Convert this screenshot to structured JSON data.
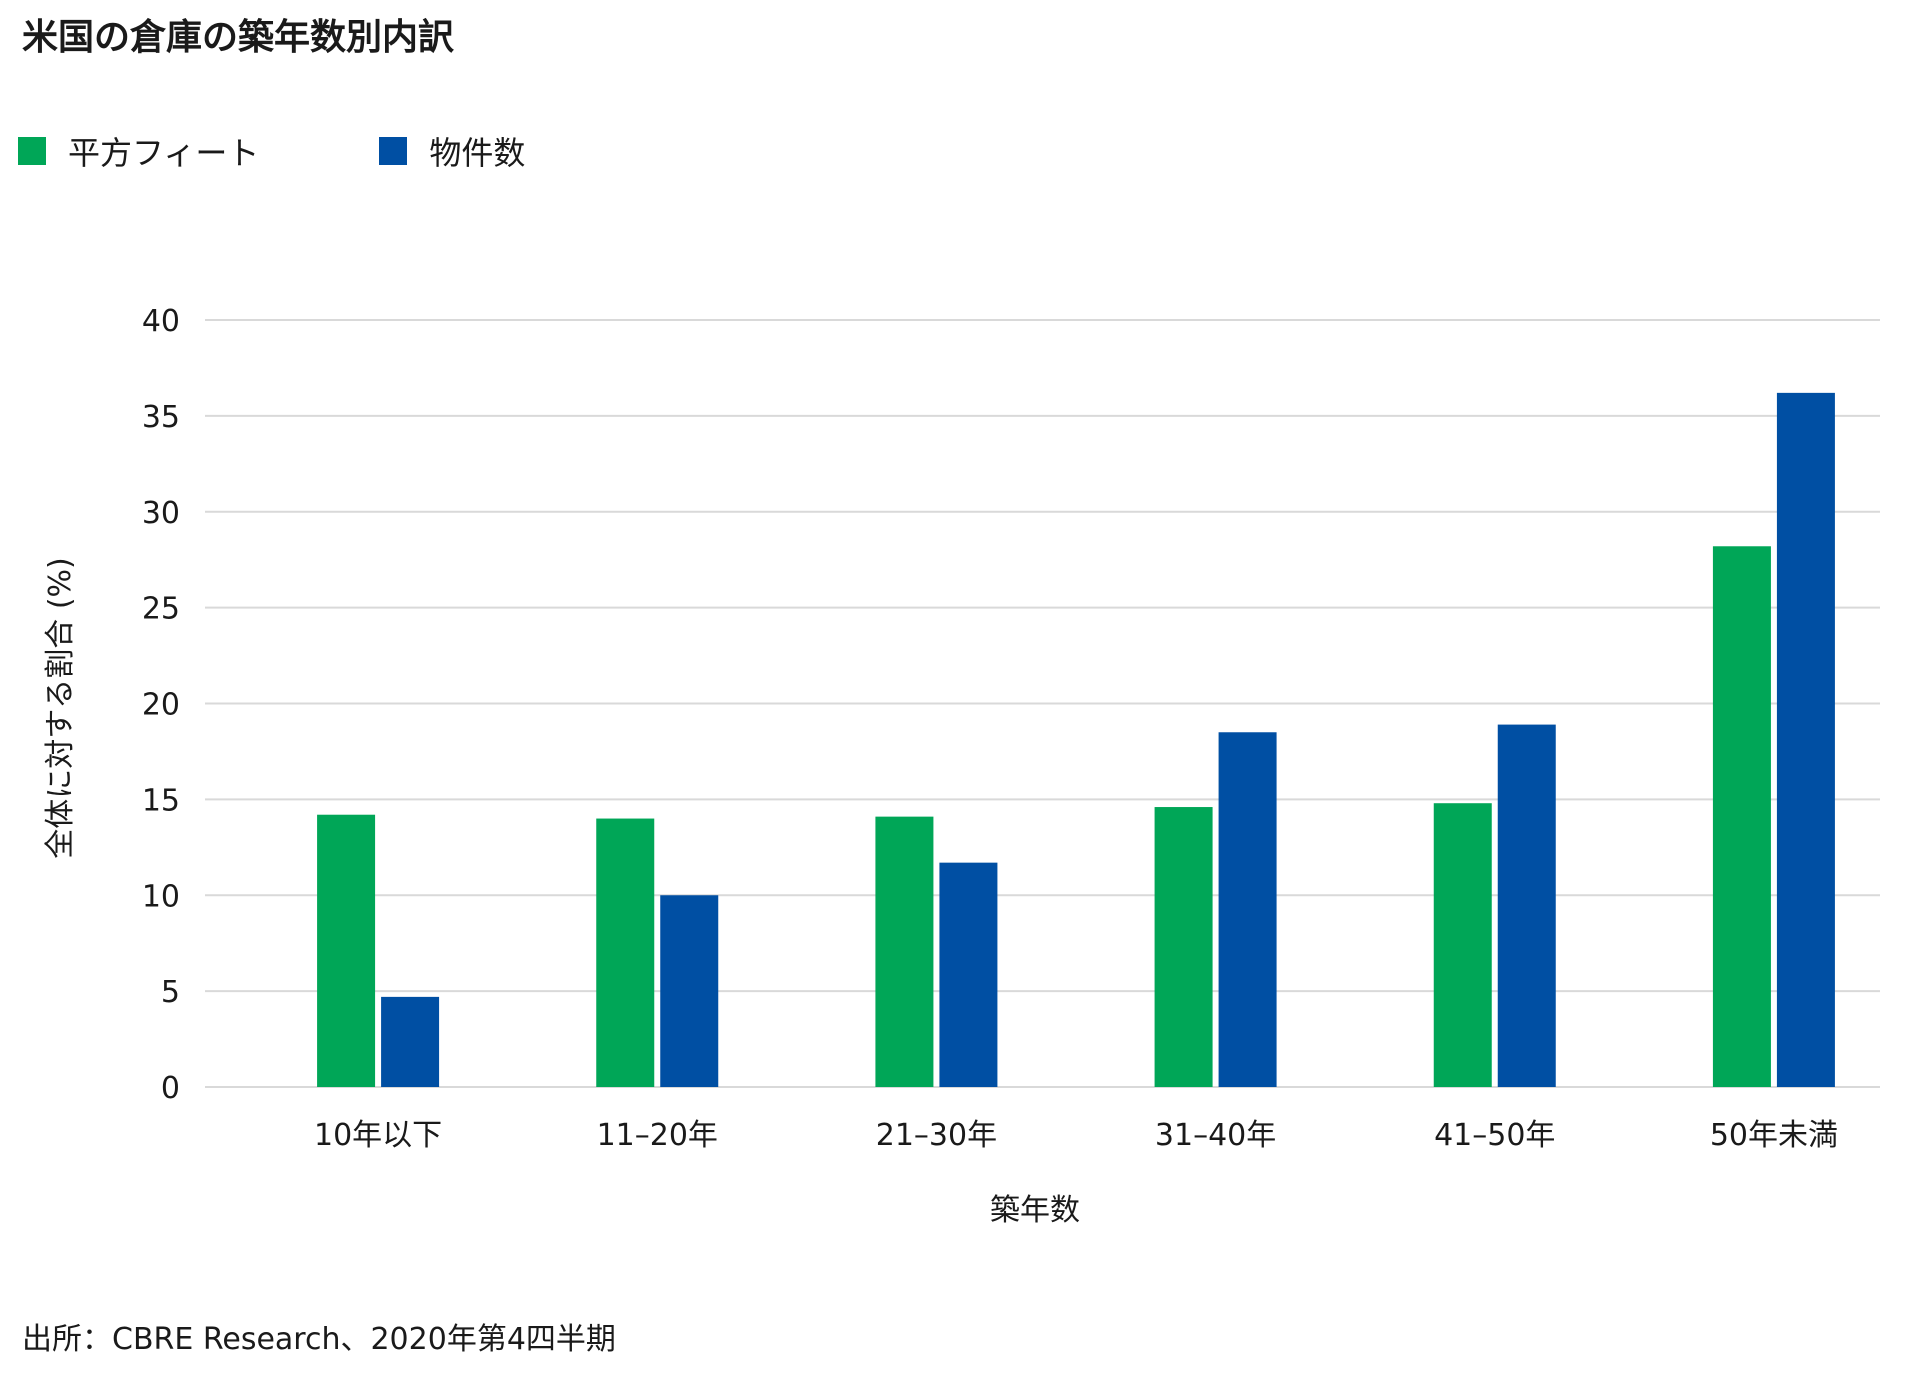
{
  "title": "米国の倉庫の築年数別内訳",
  "source": "出所：CBRE Research、2020年第4四半期",
  "chart_data": {
    "type": "bar",
    "xlabel": "築年数",
    "ylabel": "全体に対する割合 (%)",
    "ylim": [
      0,
      40
    ],
    "yticks": [
      0,
      5,
      10,
      15,
      20,
      25,
      30,
      35,
      40
    ],
    "grid": true,
    "legend_position": "top-left",
    "categories": [
      "10年以下",
      "11–20年",
      "21–30年",
      "31–40年",
      "41–50年",
      "50年未満"
    ],
    "series": [
      {
        "name": "平方フィート",
        "color": "#00A657",
        "values": [
          14.2,
          14.0,
          14.1,
          14.6,
          14.8,
          28.2
        ]
      },
      {
        "name": "物件数",
        "color": "#004FA3",
        "values": [
          4.7,
          10.0,
          11.7,
          18.5,
          18.9,
          36.2
        ]
      }
    ]
  }
}
